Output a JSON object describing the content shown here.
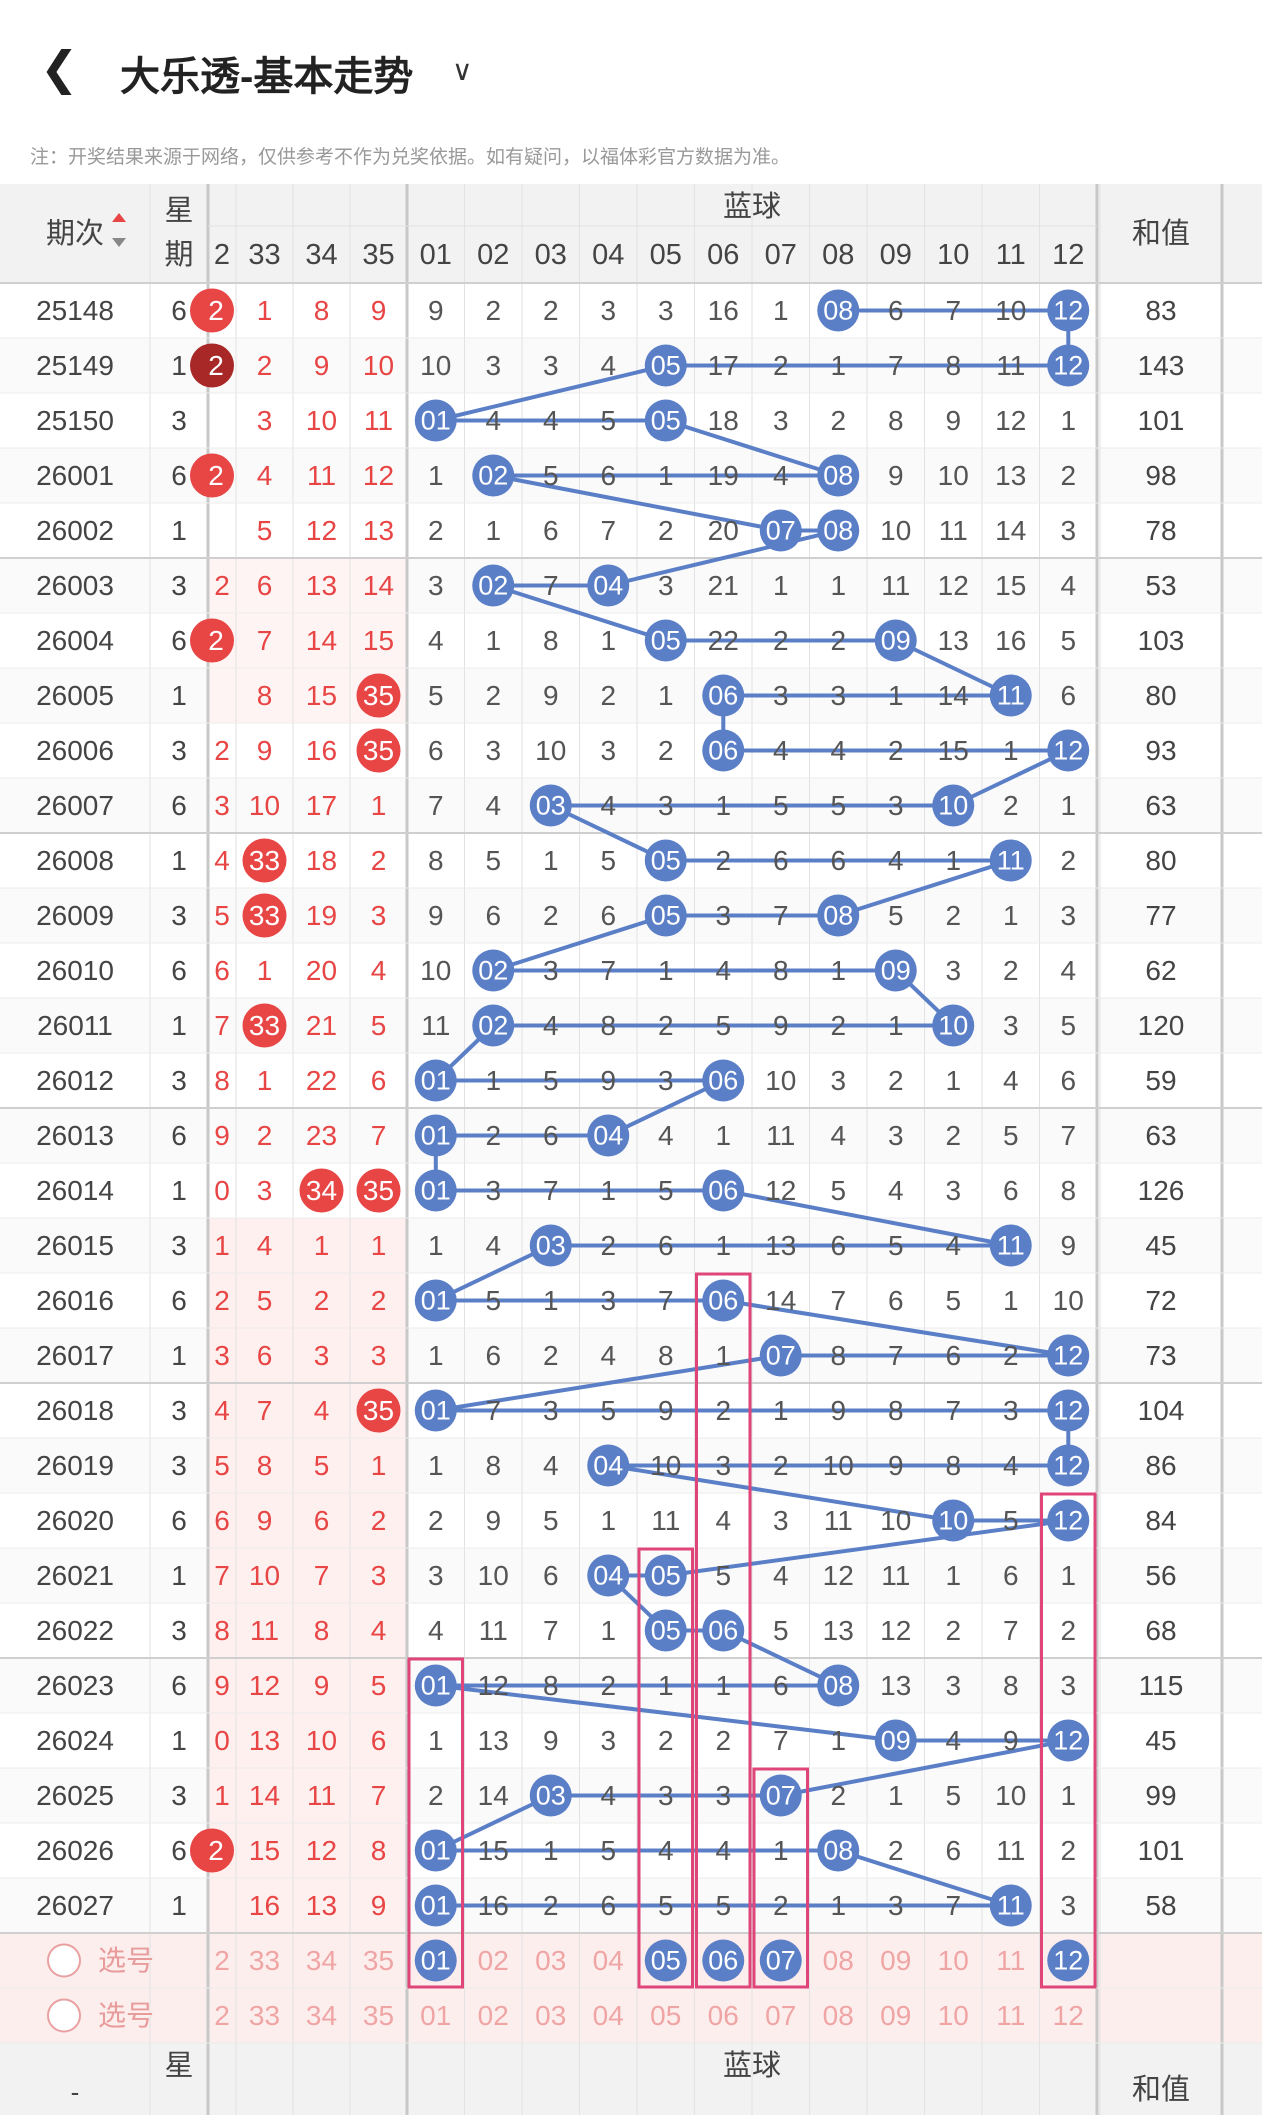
{
  "header": {
    "back_icon": "back-arrow-icon",
    "title": "大乐透-基本走势",
    "dropdown_icon": "chevron-down-icon"
  },
  "note": "注：开奖结果来源于网络，仅供参考不作为兑奖依据。如有疑问，以福体彩官方数据为准。",
  "table": {
    "col_issue": "期次",
    "col_week": "星期",
    "group_blue": "蓝球",
    "col_sum": "和值",
    "sort_icon": "sort-icon",
    "front_cols": [
      "2",
      "33",
      "34",
      "35"
    ],
    "blue_cols": [
      "01",
      "02",
      "03",
      "04",
      "05",
      "06",
      "07",
      "08",
      "09",
      "10",
      "11",
      "12"
    ],
    "rows": [
      {
        "issue": "25148",
        "week": "6",
        "front": [
          "2",
          "1",
          "8",
          "9"
        ],
        "fhit": [
          0
        ],
        "blue": [
          "9",
          "2",
          "2",
          "3",
          "3",
          "16",
          "1",
          "08",
          "6",
          "7",
          "10",
          "12"
        ],
        "hits": [
          8,
          12
        ],
        "sum": "83"
      },
      {
        "issue": "25149",
        "week": "1",
        "front": [
          "2",
          "2",
          "9",
          "10"
        ],
        "fhit": [
          0
        ],
        "fdark": true,
        "blue": [
          "10",
          "3",
          "3",
          "4",
          "05",
          "17",
          "2",
          "1",
          "7",
          "8",
          "11",
          "12"
        ],
        "hits": [
          5,
          12
        ],
        "sum": "143"
      },
      {
        "issue": "25150",
        "week": "3",
        "front": [
          "",
          "3",
          "10",
          "11"
        ],
        "fhit": [],
        "blue": [
          "01",
          "4",
          "4",
          "5",
          "05",
          "18",
          "3",
          "2",
          "8",
          "9",
          "12",
          "1"
        ],
        "hits": [
          1,
          5
        ],
        "sum": "101"
      },
      {
        "issue": "26001",
        "week": "6",
        "front": [
          "2",
          "4",
          "11",
          "12"
        ],
        "fhit": [
          0
        ],
        "blue": [
          "1",
          "02",
          "5",
          "6",
          "1",
          "19",
          "4",
          "08",
          "9",
          "10",
          "13",
          "2"
        ],
        "hits": [
          2,
          8
        ],
        "sum": "98"
      },
      {
        "issue": "26002",
        "week": "1",
        "front": [
          "",
          "5",
          "12",
          "13"
        ],
        "fhit": [],
        "blue": [
          "2",
          "1",
          "6",
          "7",
          "2",
          "20",
          "07",
          "08",
          "10",
          "11",
          "14",
          "3"
        ],
        "hits": [
          7,
          8
        ],
        "sum": "78"
      },
      {
        "issue": "26003",
        "week": "3",
        "front": [
          "2",
          "6",
          "13",
          "14"
        ],
        "fhit": [],
        "blue": [
          "3",
          "02",
          "7",
          "04",
          "3",
          "21",
          "1",
          "1",
          "11",
          "12",
          "15",
          "4"
        ],
        "hits": [
          2,
          4
        ],
        "sum": "53"
      },
      {
        "issue": "26004",
        "week": "6",
        "front": [
          "2",
          "7",
          "14",
          "15"
        ],
        "fhit": [
          0
        ],
        "blue": [
          "4",
          "1",
          "8",
          "1",
          "05",
          "22",
          "2",
          "2",
          "09",
          "13",
          "16",
          "5"
        ],
        "hits": [
          5,
          9
        ],
        "sum": "103"
      },
      {
        "issue": "26005",
        "week": "1",
        "front": [
          "",
          "8",
          "15",
          "35"
        ],
        "fhit": [
          3
        ],
        "blue": [
          "5",
          "2",
          "9",
          "2",
          "1",
          "06",
          "3",
          "3",
          "1",
          "14",
          "11",
          "6"
        ],
        "hits": [
          6,
          11
        ],
        "sum": "80"
      },
      {
        "issue": "26006",
        "week": "3",
        "front": [
          "2",
          "9",
          "16",
          "35"
        ],
        "fhit": [
          3
        ],
        "blue": [
          "6",
          "3",
          "10",
          "3",
          "2",
          "06",
          "4",
          "4",
          "2",
          "15",
          "1",
          "12"
        ],
        "hits": [
          6,
          12
        ],
        "sum": "93"
      },
      {
        "issue": "26007",
        "week": "6",
        "front": [
          "3",
          "10",
          "17",
          "1"
        ],
        "fhit": [],
        "blue": [
          "7",
          "4",
          "03",
          "4",
          "3",
          "1",
          "5",
          "5",
          "3",
          "10",
          "2",
          "1"
        ],
        "hits": [
          3,
          10
        ],
        "sum": "63"
      },
      {
        "issue": "26008",
        "week": "1",
        "front": [
          "4",
          "33",
          "18",
          "2"
        ],
        "fhit": [
          1
        ],
        "blue": [
          "8",
          "5",
          "1",
          "5",
          "05",
          "2",
          "6",
          "6",
          "4",
          "1",
          "11",
          "2"
        ],
        "hits": [
          5,
          11
        ],
        "sum": "80"
      },
      {
        "issue": "26009",
        "week": "3",
        "front": [
          "5",
          "33",
          "19",
          "3"
        ],
        "fhit": [
          1
        ],
        "blue": [
          "9",
          "6",
          "2",
          "6",
          "05",
          "3",
          "7",
          "08",
          "5",
          "2",
          "1",
          "3"
        ],
        "hits": [
          5,
          8
        ],
        "sum": "77"
      },
      {
        "issue": "26010",
        "week": "6",
        "front": [
          "6",
          "1",
          "20",
          "4"
        ],
        "fhit": [],
        "blue": [
          "10",
          "02",
          "3",
          "7",
          "1",
          "4",
          "8",
          "1",
          "09",
          "3",
          "2",
          "4"
        ],
        "hits": [
          2,
          9
        ],
        "sum": "62"
      },
      {
        "issue": "26011",
        "week": "1",
        "front": [
          "7",
          "33",
          "21",
          "5"
        ],
        "fhit": [
          1
        ],
        "blue": [
          "11",
          "02",
          "4",
          "8",
          "2",
          "5",
          "9",
          "2",
          "1",
          "10",
          "3",
          "5"
        ],
        "hits": [
          2,
          10
        ],
        "sum": "120"
      },
      {
        "issue": "26012",
        "week": "3",
        "front": [
          "8",
          "1",
          "22",
          "6"
        ],
        "fhit": [],
        "blue": [
          "01",
          "1",
          "5",
          "9",
          "3",
          "06",
          "10",
          "3",
          "2",
          "1",
          "4",
          "6"
        ],
        "hits": [
          1,
          6
        ],
        "sum": "59"
      },
      {
        "issue": "26013",
        "week": "6",
        "front": [
          "9",
          "2",
          "23",
          "7"
        ],
        "fhit": [],
        "blue": [
          "01",
          "2",
          "6",
          "04",
          "4",
          "1",
          "11",
          "4",
          "3",
          "2",
          "5",
          "7"
        ],
        "hits": [
          1,
          4
        ],
        "sum": "63"
      },
      {
        "issue": "26014",
        "week": "1",
        "front": [
          "0",
          "3",
          "34",
          "35"
        ],
        "fhit": [
          2,
          3
        ],
        "blue": [
          "01",
          "3",
          "7",
          "1",
          "5",
          "06",
          "12",
          "5",
          "4",
          "3",
          "6",
          "8"
        ],
        "hits": [
          1,
          6
        ],
        "sum": "126"
      },
      {
        "issue": "26015",
        "week": "3",
        "front": [
          "1",
          "4",
          "1",
          "1"
        ],
        "fhit": [],
        "blue": [
          "1",
          "4",
          "03",
          "2",
          "6",
          "1",
          "13",
          "6",
          "5",
          "4",
          "11",
          "9"
        ],
        "hits": [
          3,
          11
        ],
        "sum": "45"
      },
      {
        "issue": "26016",
        "week": "6",
        "front": [
          "2",
          "5",
          "2",
          "2"
        ],
        "fhit": [],
        "blue": [
          "01",
          "5",
          "1",
          "3",
          "7",
          "06",
          "14",
          "7",
          "6",
          "5",
          "1",
          "10"
        ],
        "hits": [
          1,
          6
        ],
        "sum": "72"
      },
      {
        "issue": "26017",
        "week": "1",
        "front": [
          "3",
          "6",
          "3",
          "3"
        ],
        "fhit": [],
        "blue": [
          "1",
          "6",
          "2",
          "4",
          "8",
          "1",
          "07",
          "8",
          "7",
          "6",
          "2",
          "12"
        ],
        "hits": [
          7,
          12
        ],
        "sum": "73"
      },
      {
        "issue": "26018",
        "week": "3",
        "front": [
          "4",
          "7",
          "4",
          "35"
        ],
        "fhit": [
          3
        ],
        "blue": [
          "01",
          "7",
          "3",
          "5",
          "9",
          "2",
          "1",
          "9",
          "8",
          "7",
          "3",
          "12"
        ],
        "hits": [
          1,
          12
        ],
        "sum": "104"
      },
      {
        "issue": "26019",
        "week": "3",
        "front": [
          "5",
          "8",
          "5",
          "1"
        ],
        "fhit": [],
        "blue": [
          "1",
          "8",
          "4",
          "04",
          "10",
          "3",
          "2",
          "10",
          "9",
          "8",
          "4",
          "12"
        ],
        "hits": [
          4,
          12
        ],
        "sum": "86"
      },
      {
        "issue": "26020",
        "week": "6",
        "front": [
          "6",
          "9",
          "6",
          "2"
        ],
        "fhit": [],
        "blue": [
          "2",
          "9",
          "5",
          "1",
          "11",
          "4",
          "3",
          "11",
          "10",
          "10",
          "5",
          "12"
        ],
        "hits": [
          10,
          12
        ],
        "sum": "84"
      },
      {
        "issue": "26021",
        "week": "1",
        "front": [
          "7",
          "10",
          "7",
          "3"
        ],
        "fhit": [],
        "blue": [
          "3",
          "10",
          "6",
          "04",
          "05",
          "5",
          "4",
          "12",
          "11",
          "1",
          "6",
          "1"
        ],
        "hits": [
          4,
          5
        ],
        "sum": "56"
      },
      {
        "issue": "26022",
        "week": "3",
        "front": [
          "8",
          "11",
          "8",
          "4"
        ],
        "fhit": [],
        "blue": [
          "4",
          "11",
          "7",
          "1",
          "05",
          "06",
          "5",
          "13",
          "12",
          "2",
          "7",
          "2"
        ],
        "hits": [
          5,
          6
        ],
        "sum": "68"
      },
      {
        "issue": "26023",
        "week": "6",
        "front": [
          "9",
          "12",
          "9",
          "5"
        ],
        "fhit": [],
        "blue": [
          "01",
          "12",
          "8",
          "2",
          "1",
          "1",
          "6",
          "08",
          "13",
          "3",
          "8",
          "3"
        ],
        "hits": [
          1,
          8
        ],
        "sum": "115"
      },
      {
        "issue": "26024",
        "week": "1",
        "front": [
          "0",
          "13",
          "10",
          "6"
        ],
        "fhit": [],
        "blue": [
          "1",
          "13",
          "9",
          "3",
          "2",
          "2",
          "7",
          "1",
          "09",
          "4",
          "9",
          "12"
        ],
        "hits": [
          9,
          12
        ],
        "sum": "45"
      },
      {
        "issue": "26025",
        "week": "3",
        "front": [
          "1",
          "14",
          "11",
          "7"
        ],
        "fhit": [],
        "blue": [
          "2",
          "14",
          "03",
          "4",
          "3",
          "3",
          "07",
          "2",
          "1",
          "5",
          "10",
          "1"
        ],
        "hits": [
          3,
          7
        ],
        "sum": "99"
      },
      {
        "issue": "26026",
        "week": "6",
        "front": [
          "2",
          "15",
          "12",
          "8"
        ],
        "fhit": [
          0
        ],
        "blue": [
          "01",
          "15",
          "1",
          "5",
          "4",
          "4",
          "1",
          "08",
          "2",
          "6",
          "11",
          "2"
        ],
        "hits": [
          1,
          8
        ],
        "sum": "101"
      },
      {
        "issue": "26027",
        "week": "1",
        "front": [
          "",
          "16",
          "13",
          "9"
        ],
        "fhit": [],
        "blue": [
          "01",
          "16",
          "2",
          "6",
          "5",
          "5",
          "2",
          "1",
          "3",
          "7",
          "11",
          "3"
        ],
        "hits": [
          1,
          11
        ],
        "sum": "58"
      }
    ],
    "pick_label": "选号",
    "pick_front": [
      "2",
      "33",
      "34",
      "35"
    ],
    "pick_blue": [
      "01",
      "02",
      "03",
      "04",
      "05",
      "06",
      "07",
      "08",
      "09",
      "10",
      "11",
      "12"
    ],
    "pick_selected": [
      1,
      5,
      6,
      7,
      12
    ]
  },
  "colors": {
    "blue_ball": "#5b7fc7",
    "red_ball": "#e84545",
    "dark_red_ball": "#a82828",
    "red_text": "#e84545",
    "magenta_box": "#e0457a",
    "pink_bg": "#fdeeee"
  }
}
